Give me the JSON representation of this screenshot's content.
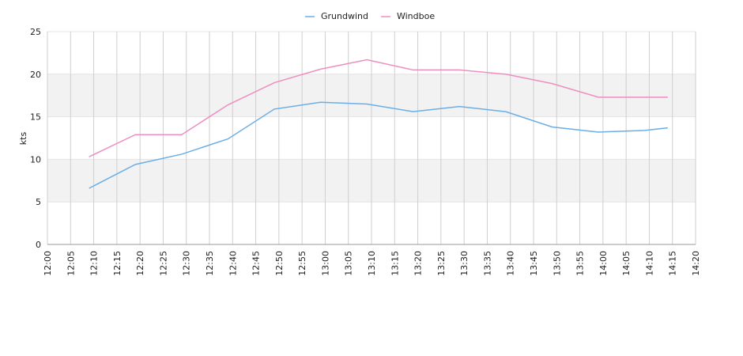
{
  "chart_data": {
    "type": "line",
    "x": [
      "12:09",
      "12:19",
      "12:29",
      "12:39",
      "12:49",
      "12:59",
      "13:09",
      "13:19",
      "13:29",
      "13:39",
      "13:49",
      "13:59",
      "14:09",
      "14:14"
    ],
    "series": [
      {
        "name": "Grundwind",
        "color": "#6aaee8",
        "values": [
          6.6,
          9.4,
          10.6,
          12.4,
          15.9,
          16.7,
          16.5,
          15.6,
          16.2,
          15.6,
          13.8,
          13.2,
          13.4,
          13.7
        ]
      },
      {
        "name": "Windboe",
        "color": "#ee8ec0",
        "values": [
          10.3,
          12.9,
          12.9,
          16.4,
          19.0,
          20.6,
          21.7,
          20.5,
          20.5,
          20.0,
          18.9,
          17.3,
          17.3,
          17.3
        ]
      }
    ],
    "y_label": "kts",
    "xlim": [
      "12:00",
      "14:20"
    ],
    "xticks": [
      "12:00",
      "12:05",
      "12:10",
      "12:15",
      "12:20",
      "12:25",
      "12:30",
      "12:35",
      "12:40",
      "12:45",
      "12:50",
      "12:55",
      "13:00",
      "13:05",
      "13:10",
      "13:15",
      "13:20",
      "13:25",
      "13:30",
      "13:35",
      "13:40",
      "13:45",
      "13:50",
      "13:55",
      "14:00",
      "14:05",
      "14:10",
      "14:15",
      "14:20"
    ],
    "ylim": [
      0,
      25
    ],
    "yticks": [
      0,
      5,
      10,
      15,
      20,
      25
    ],
    "grid": true,
    "legend": "top"
  }
}
